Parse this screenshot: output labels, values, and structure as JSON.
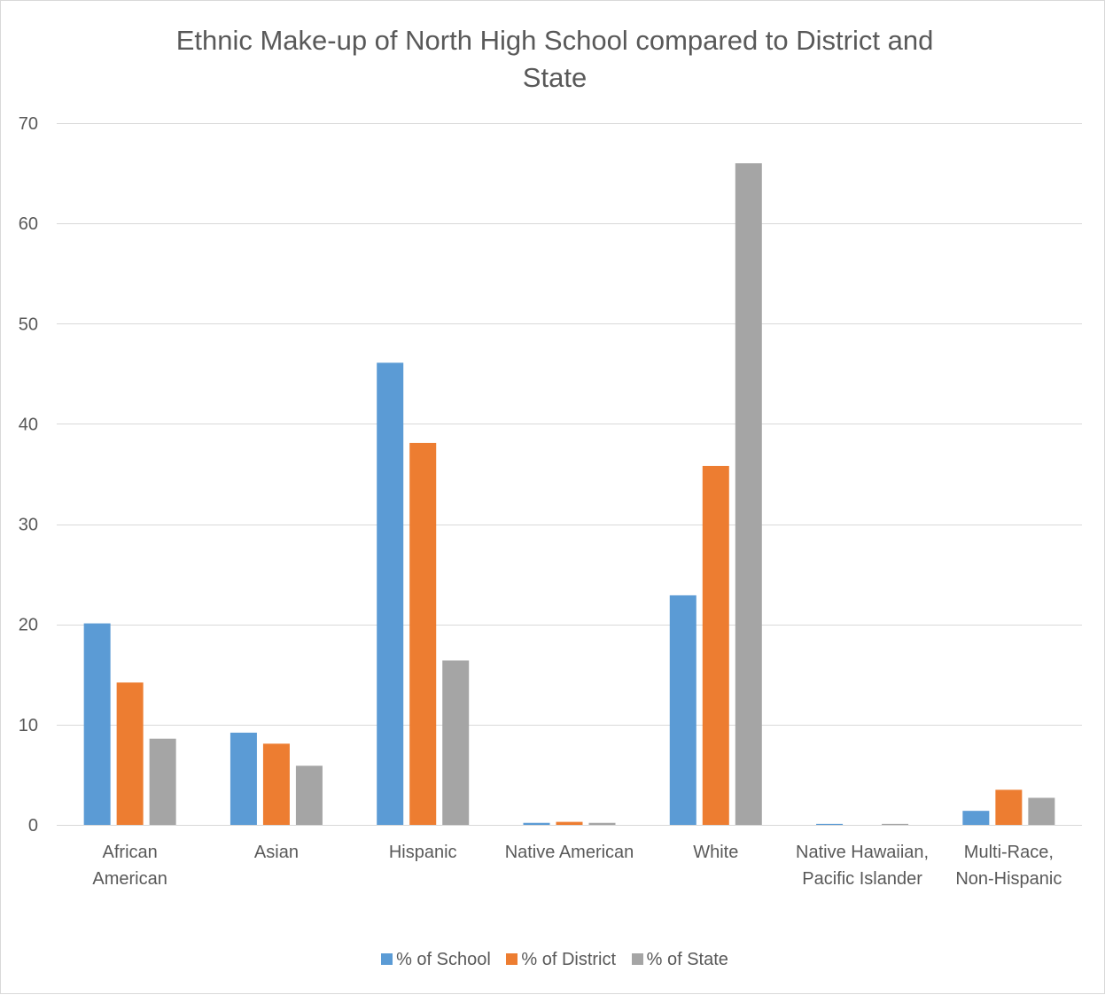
{
  "chart_data": {
    "type": "bar",
    "title": "Ethnic Make-up of North High School compared to District and State",
    "title_lines": [
      "Ethnic Make-up of North High School compared to District and",
      "State"
    ],
    "categories": [
      [
        "African",
        "American"
      ],
      [
        "Asian"
      ],
      [
        "Hispanic"
      ],
      [
        "Native American"
      ],
      [
        "White"
      ],
      [
        "Native Hawaiian,",
        "Pacific Islander"
      ],
      [
        "Multi-Race,",
        "Non-Hispanic"
      ]
    ],
    "series": [
      {
        "name": "% of School",
        "color": "#5b9bd5",
        "values": [
          20.1,
          9.2,
          46.1,
          0.2,
          22.9,
          0.1,
          1.4
        ]
      },
      {
        "name": "% of District",
        "color": "#ed7d31",
        "values": [
          14.2,
          8.1,
          38.1,
          0.3,
          35.8,
          0.0,
          3.5
        ]
      },
      {
        "name": "% of State",
        "color": "#a5a5a5",
        "values": [
          8.6,
          5.9,
          16.4,
          0.2,
          66.0,
          0.1,
          2.7
        ]
      }
    ],
    "ylim": [
      0,
      70
    ],
    "yticks": [
      0,
      10,
      20,
      30,
      40,
      50,
      60,
      70
    ],
    "xlabel": "",
    "ylabel": "",
    "grid": true,
    "legend_position": "bottom"
  }
}
